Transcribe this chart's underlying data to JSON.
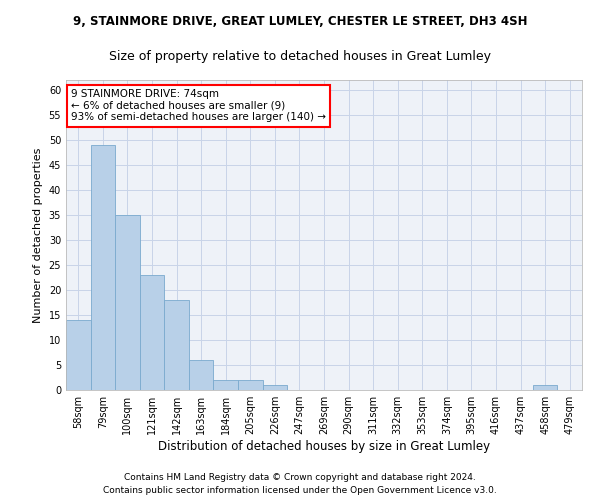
{
  "title1": "9, STAINMORE DRIVE, GREAT LUMLEY, CHESTER LE STREET, DH3 4SH",
  "title2": "Size of property relative to detached houses in Great Lumley",
  "xlabel": "Distribution of detached houses by size in Great Lumley",
  "ylabel": "Number of detached properties",
  "categories": [
    "58sqm",
    "79sqm",
    "100sqm",
    "121sqm",
    "142sqm",
    "163sqm",
    "184sqm",
    "205sqm",
    "226sqm",
    "247sqm",
    "269sqm",
    "290sqm",
    "311sqm",
    "332sqm",
    "353sqm",
    "374sqm",
    "395sqm",
    "416sqm",
    "437sqm",
    "458sqm",
    "479sqm"
  ],
  "values": [
    14,
    49,
    35,
    23,
    18,
    6,
    2,
    2,
    1,
    0,
    0,
    0,
    0,
    0,
    0,
    0,
    0,
    0,
    0,
    1,
    0
  ],
  "bar_color": "#b8d0e8",
  "bar_edge_color": "#7aaace",
  "annotation_text": "9 STAINMORE DRIVE: 74sqm\n← 6% of detached houses are smaller (9)\n93% of semi-detached houses are larger (140) →",
  "annotation_box_edge_color": "red",
  "ylim": [
    0,
    62
  ],
  "yticks": [
    0,
    5,
    10,
    15,
    20,
    25,
    30,
    35,
    40,
    45,
    50,
    55,
    60
  ],
  "footer1": "Contains HM Land Registry data © Crown copyright and database right 2024.",
  "footer2": "Contains public sector information licensed under the Open Government Licence v3.0.",
  "bg_color": "#eef2f8",
  "grid_color": "#c8d4e8",
  "title1_fontsize": 8.5,
  "title2_fontsize": 9,
  "xlabel_fontsize": 8.5,
  "ylabel_fontsize": 8,
  "tick_fontsize": 7,
  "annotation_fontsize": 7.5,
  "footer_fontsize": 6.5
}
